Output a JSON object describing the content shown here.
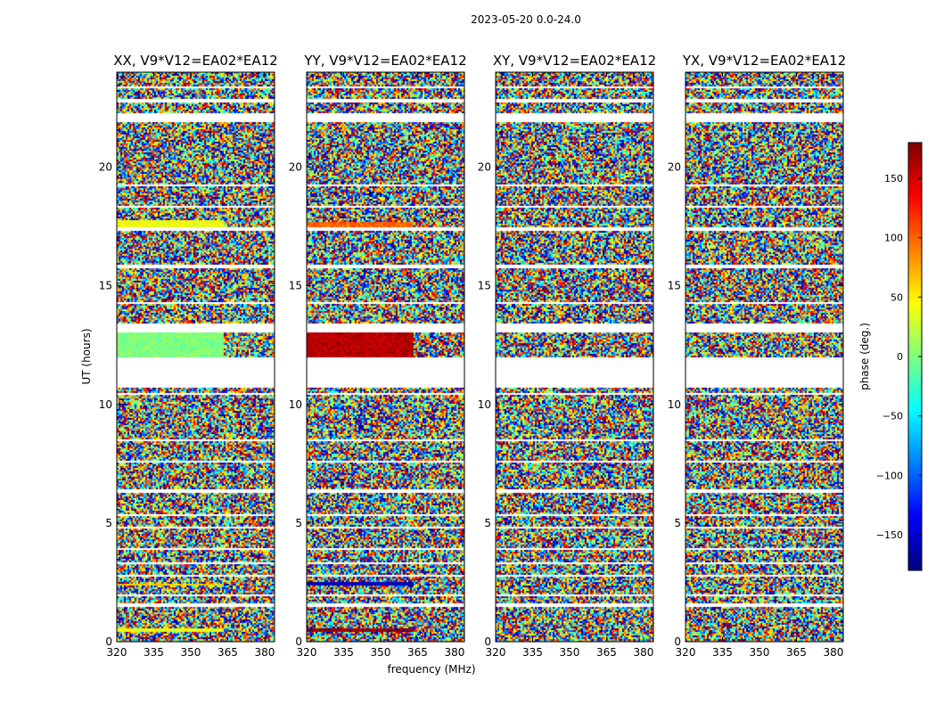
{
  "chart_data": {
    "type": "heatmap",
    "suptitle": "2023-05-20 0.0-24.0",
    "xlabel": "frequency (MHz)",
    "ylabel": "UT (hours)",
    "xlim": [
      320,
      384
    ],
    "ylim": [
      0,
      24
    ],
    "x_ticks": [
      320,
      335,
      350,
      365,
      380
    ],
    "y_ticks": [
      0,
      5,
      10,
      15,
      20
    ],
    "colorbar": {
      "label": "phase (deg.)",
      "range": [
        -180,
        180
      ],
      "ticks": [
        150,
        100,
        50,
        0,
        -50,
        -100,
        -150
      ],
      "tick_labels": [
        "150",
        "100",
        "50",
        "0",
        "−50",
        "−100",
        "−150"
      ],
      "colormap": [
        "#00007f",
        "#0000ff",
        "#007fff",
        "#00ffff",
        "#7fff7f",
        "#ffff00",
        "#ff7f00",
        "#ff0000",
        "#7f0000"
      ]
    },
    "panels": [
      {
        "title": "XX, V9*V12=EA02*EA12",
        "name": "xx",
        "seed": 11,
        "coherent": [
          {
            "t0": 12.0,
            "t1": 13.0,
            "phase": 0
          },
          {
            "t0": 17.5,
            "t1": 17.75,
            "phase": 40
          },
          {
            "t0": 0.45,
            "t1": 0.55,
            "phase": 40
          },
          {
            "t0": 2.35,
            "t1": 2.45,
            "phase": 60
          }
        ]
      },
      {
        "title": "YY, V9*V12=EA02*EA12",
        "name": "yy",
        "seed": 23,
        "coherent": [
          {
            "t0": 12.0,
            "t1": 13.0,
            "phase": 160
          },
          {
            "t0": 2.35,
            "t1": 2.5,
            "phase": -160
          },
          {
            "t0": 0.4,
            "t1": 0.6,
            "phase": 170
          },
          {
            "t0": 17.5,
            "t1": 17.7,
            "phase": 100
          }
        ]
      },
      {
        "title": "XY, V9*V12=EA02*EA12",
        "name": "xy",
        "seed": 37,
        "coherent": []
      },
      {
        "title": "YX, V9*V12=EA02*EA12",
        "name": "yx",
        "seed": 53,
        "coherent": []
      }
    ],
    "flagged_hours": [
      [
        0.1,
        0.15
      ],
      [
        0.85,
        0.9
      ],
      [
        1.5,
        1.58
      ],
      [
        1.95,
        2.0
      ],
      [
        2.75,
        2.85
      ],
      [
        3.3,
        3.35
      ],
      [
        3.85,
        3.95
      ],
      [
        4.8,
        4.85
      ],
      [
        5.3,
        5.35
      ],
      [
        6.3,
        6.45
      ],
      [
        7.55,
        7.6
      ],
      [
        8.05,
        8.1
      ],
      [
        8.45,
        8.5
      ],
      [
        9.4,
        9.45
      ],
      [
        10.4,
        10.45
      ],
      [
        10.7,
        12.0
      ],
      [
        13.0,
        13.4
      ],
      [
        14.2,
        14.3
      ],
      [
        15.4,
        15.45
      ],
      [
        15.75,
        15.85
      ],
      [
        17.3,
        17.45
      ],
      [
        18.3,
        18.35
      ],
      [
        19.2,
        19.25
      ],
      [
        20.3,
        20.35
      ],
      [
        21.9,
        22.3
      ],
      [
        22.75,
        22.85
      ],
      [
        23.3,
        23.4
      ]
    ]
  }
}
